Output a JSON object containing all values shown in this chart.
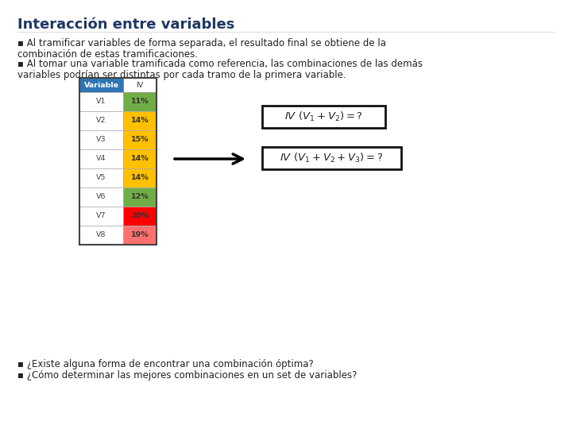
{
  "title": "Interacción entre variables",
  "title_color": "#1F3864",
  "title_fontsize": 13,
  "bg_color": "#ffffff",
  "bullet1_line1": "▪ Al tramificar variables de forma separada, el resultado final se obtiene de la",
  "bullet1_line2": "combinación de estas tramificaciones.",
  "bullet2_line1": "▪ Al tomar una variable tramificada como referencia, las combinaciones de las demás",
  "bullet2_line2": "variables podrían ser distintas por cada tramo de la primera variable.",
  "bullet3": "▪ ¿Existe alguna forma de encontrar una combinación óptima?",
  "bullet4": "▪ ¿Cómo determinar las mejores combinaciones en un set de variables?",
  "table_variables": [
    "V1",
    "V2",
    "V3",
    "V4",
    "V5",
    "V6",
    "V7",
    "V8"
  ],
  "table_iv_values": [
    "11%",
    "14%",
    "15%",
    "14%",
    "14%",
    "12%",
    "20%",
    "19%"
  ],
  "table_iv_colors": [
    "#70AD47",
    "#FFC000",
    "#FFC000",
    "#FFC000",
    "#FFC000",
    "#70AD47",
    "#FF0000",
    "#FF7070"
  ],
  "header_bg": "#2E75B6",
  "header_text": "#ffffff",
  "formula1": "$IV\\ (V_1 + V_2) = ?$",
  "formula2": "$IV\\ (V_1 + V_2 + V_3) = ?$",
  "text_fontsize": 8.5,
  "table_fontsize": 7.5
}
